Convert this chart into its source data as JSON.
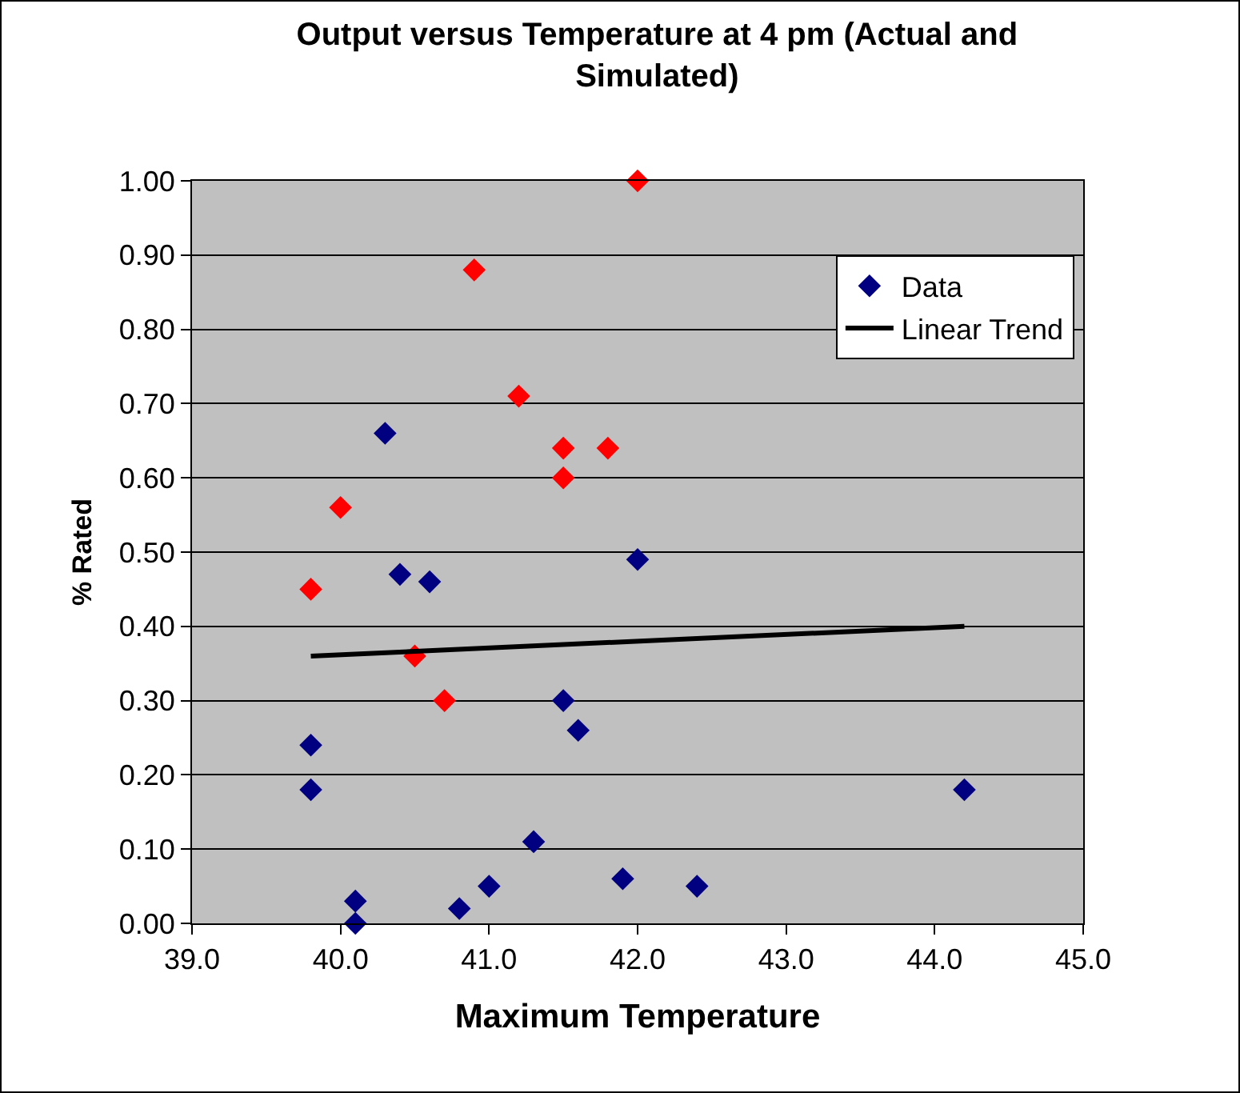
{
  "chart_data": {
    "type": "scatter",
    "title": "Output versus Temperature at 4 pm (Actual and Simulated)",
    "xlabel": "Maximum Temperature",
    "ylabel": "% Rated",
    "xlim": [
      39,
      45
    ],
    "xticks": [
      {
        "value": 39,
        "label": "39.0"
      },
      {
        "value": 40,
        "label": "40.0"
      },
      {
        "value": 41,
        "label": "41.0"
      },
      {
        "value": 42,
        "label": "42.0"
      },
      {
        "value": 43,
        "label": "43.0"
      },
      {
        "value": 44,
        "label": "44.0"
      },
      {
        "value": 45,
        "label": "45.0"
      }
    ],
    "ylim": [
      0,
      1
    ],
    "yticks": [
      {
        "value": 0,
        "label": "0.00"
      },
      {
        "value": 0.1,
        "label": "0.10"
      },
      {
        "value": 0.2,
        "label": "0.20"
      },
      {
        "value": 0.3,
        "label": "0.30"
      },
      {
        "value": 0.4,
        "label": "0.40"
      },
      {
        "value": 0.5,
        "label": "0.50"
      },
      {
        "value": 0.6,
        "label": "0.60"
      },
      {
        "value": 0.7,
        "label": "0.70"
      },
      {
        "value": 0.8,
        "label": "0.80"
      },
      {
        "value": 0.9,
        "label": "0.90"
      },
      {
        "value": 1,
        "label": "1.00"
      }
    ],
    "grid": "y",
    "legend": "top right",
    "marker": "diamond",
    "series": [
      {
        "name": "Data",
        "color": "#000080",
        "x": [
          40.3,
          40.4,
          40.6,
          42.0,
          39.8,
          39.8,
          40.1,
          40.1,
          40.8,
          41.0,
          41.3,
          41.5,
          41.6,
          41.9,
          42.4,
          44.2
        ],
        "values": [
          0.66,
          0.47,
          0.46,
          0.49,
          0.24,
          0.18,
          0.03,
          0.0,
          0.02,
          0.05,
          0.11,
          0.3,
          0.26,
          0.06,
          0.05,
          0.18
        ]
      },
      {
        "color": "#ff0000",
        "x": [
          42.0,
          40.9,
          41.2,
          41.5,
          41.8,
          41.5,
          40.0,
          39.8,
          40.5,
          40.7
        ],
        "values": [
          1.0,
          0.88,
          0.71,
          0.64,
          0.64,
          0.6,
          0.56,
          0.45,
          0.36,
          0.3
        ]
      },
      {
        "name": "Linear Trend",
        "type": "line",
        "marker": "none",
        "color": "#000000",
        "x": [
          39.8,
          44.2
        ],
        "values": [
          0.36,
          0.4
        ]
      }
    ]
  }
}
